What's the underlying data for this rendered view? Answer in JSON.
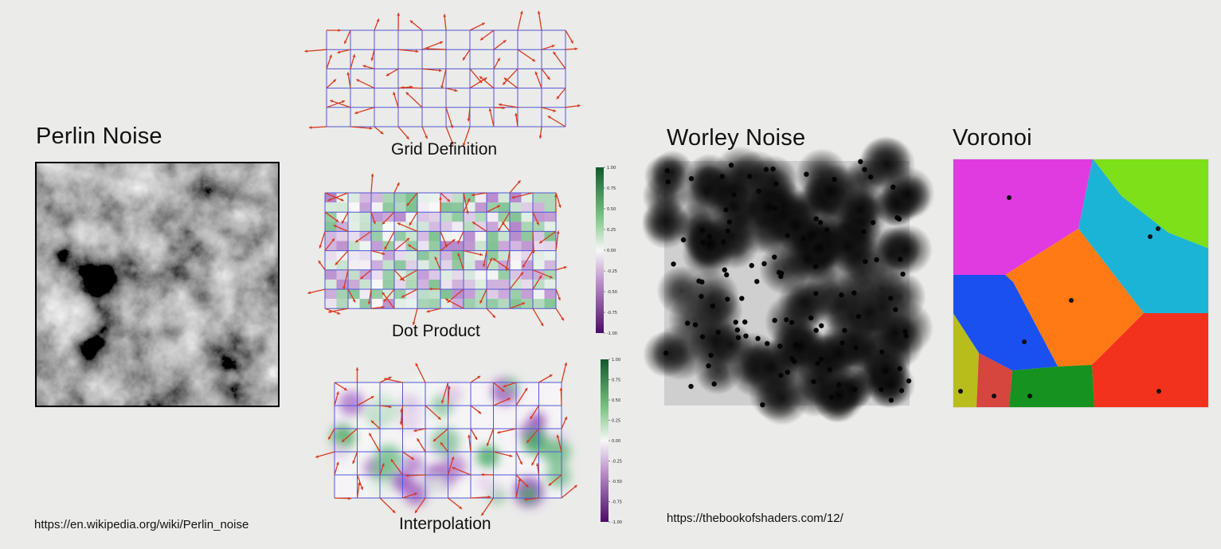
{
  "perlin": {
    "title": "Perlin Noise",
    "url": "https://en.wikipedia.org/wiki/Perlin_noise"
  },
  "steps": [
    {
      "caption": "Grid Definition"
    },
    {
      "caption": "Dot Product",
      "colorbar_ticks": [
        "1.00",
        "0.75",
        "0.50",
        "0.25",
        "0.00",
        "-0.25",
        "-0.50",
        "-0.75",
        "-1.00"
      ]
    },
    {
      "caption": "Interpolation",
      "colorbar_ticks": [
        "1.00",
        "0.75",
        "0.50",
        "0.25",
        "0.00",
        "-0.25",
        "-0.50",
        "-0.75",
        "-1.00"
      ]
    }
  ],
  "worley": {
    "title": "Worley Noise",
    "url": "https://thebookofshaders.com/12/"
  },
  "voronoi": {
    "title": "Voronoi",
    "cell_colors": [
      "#e03be0",
      "#7de018",
      "#1cb4d6",
      "#ff7a14",
      "#1a4ff0",
      "#f2321c",
      "#b8bd1c",
      "#d6453e",
      "#15921f"
    ]
  },
  "colors": {
    "arrow": "#d83a1e",
    "grid": "#5057d8",
    "diverge_pos": "#2e9e4e",
    "diverge_neg": "#8a3ab0"
  }
}
